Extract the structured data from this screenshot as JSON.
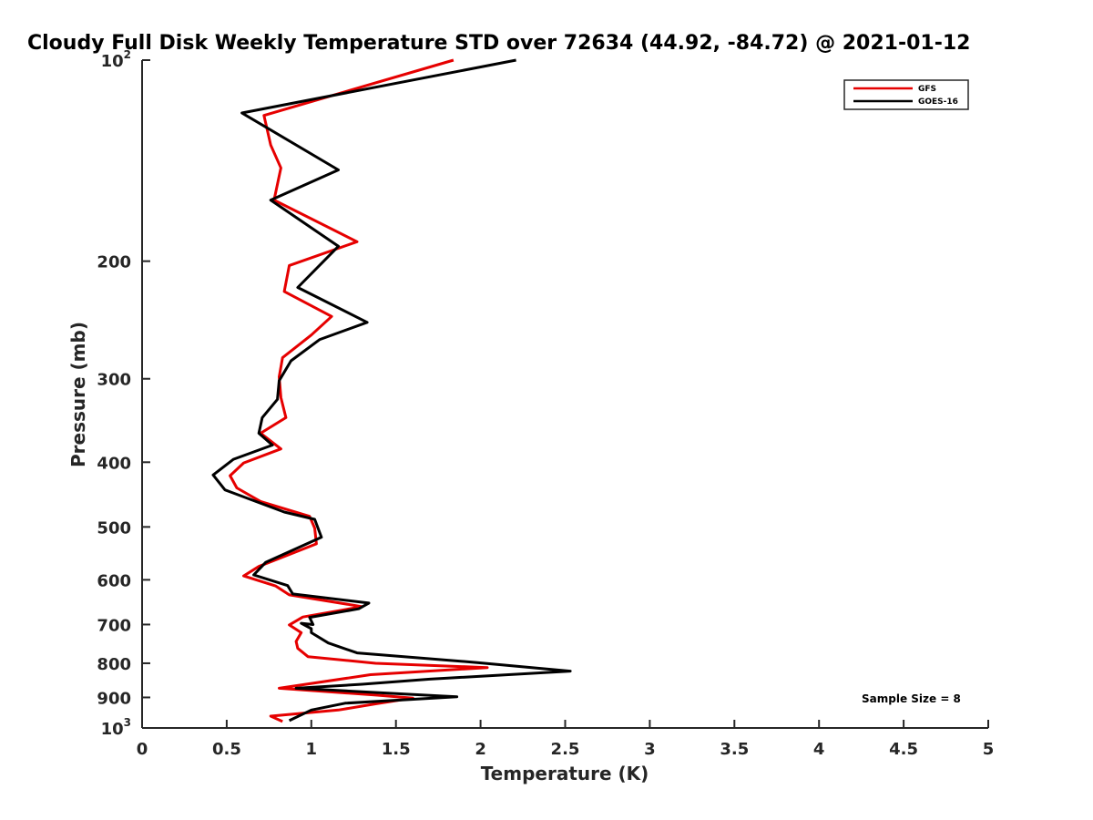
{
  "chart_data": {
    "type": "line",
    "title": "Cloudy Full Disk Weekly Temperature STD over 72634 (44.92, -84.72) @ 2021-01-12",
    "xlabel": "Temperature (K)",
    "ylabel": "Pressure (mb)",
    "xlim": [
      0,
      5
    ],
    "ylim": [
      100,
      1000
    ],
    "y_scale": "log",
    "y_reversed": true,
    "grid": false,
    "legend_position": "top-right",
    "x_ticks": [
      0,
      0.5,
      1,
      1.5,
      2,
      2.5,
      3,
      3.5,
      4,
      4.5,
      5
    ],
    "x_tick_labels": [
      "0",
      "0.5",
      "1",
      "1.5",
      "2",
      "2.5",
      "3",
      "3.5",
      "4",
      "4.5",
      "5"
    ],
    "y_ticks": [
      100,
      200,
      300,
      400,
      500,
      600,
      700,
      800,
      900,
      1000
    ],
    "y_tick_labels": [
      {
        "base": "10",
        "exp": "2"
      },
      {
        "base": "200",
        "exp": ""
      },
      {
        "base": "300",
        "exp": ""
      },
      {
        "base": "400",
        "exp": ""
      },
      {
        "base": "500",
        "exp": ""
      },
      {
        "base": "600",
        "exp": ""
      },
      {
        "base": "700",
        "exp": ""
      },
      {
        "base": "800",
        "exp": ""
      },
      {
        "base": "900",
        "exp": ""
      },
      {
        "base": "10",
        "exp": "3"
      }
    ],
    "series": [
      {
        "name": "GFS",
        "color": "#e60000",
        "points": [
          [
            1.84,
            100
          ],
          [
            0.72,
            121
          ],
          [
            0.76,
            134
          ],
          [
            0.82,
            145
          ],
          [
            0.78,
            162
          ],
          [
            1.27,
            187
          ],
          [
            0.87,
            203
          ],
          [
            0.84,
            222
          ],
          [
            1.12,
            242
          ],
          [
            1.0,
            258
          ],
          [
            0.83,
            279
          ],
          [
            0.81,
            298
          ],
          [
            0.82,
            320
          ],
          [
            0.85,
            343
          ],
          [
            0.7,
            362
          ],
          [
            0.82,
            382
          ],
          [
            0.6,
            401
          ],
          [
            0.52,
            419
          ],
          [
            0.56,
            437
          ],
          [
            0.7,
            458
          ],
          [
            0.99,
            482
          ],
          [
            1.02,
            502
          ],
          [
            1.03,
            530
          ],
          [
            0.69,
            573
          ],
          [
            0.6,
            592
          ],
          [
            0.79,
            613
          ],
          [
            0.87,
            632
          ],
          [
            1.3,
            658
          ],
          [
            0.95,
            682
          ],
          [
            0.87,
            701
          ],
          [
            0.94,
            720
          ],
          [
            0.91,
            742
          ],
          [
            0.92,
            760
          ],
          [
            0.98,
            782
          ],
          [
            1.38,
            800
          ],
          [
            2.04,
            812
          ],
          [
            1.35,
            832
          ],
          [
            0.81,
            872
          ],
          [
            1.39,
            893
          ],
          [
            1.6,
            902
          ],
          [
            1.38,
            920
          ],
          [
            1.16,
            940
          ],
          [
            0.76,
            960
          ],
          [
            0.83,
            978
          ]
        ]
      },
      {
        "name": "GOES-16",
        "color": "#000000",
        "points": [
          [
            2.21,
            100
          ],
          [
            0.59,
            120
          ],
          [
            1.16,
            146
          ],
          [
            0.76,
            162
          ],
          [
            1.16,
            190
          ],
          [
            0.92,
            219
          ],
          [
            1.33,
            247
          ],
          [
            1.05,
            262
          ],
          [
            0.88,
            282
          ],
          [
            0.81,
            302
          ],
          [
            0.8,
            322
          ],
          [
            0.71,
            343
          ],
          [
            0.69,
            362
          ],
          [
            0.77,
            377
          ],
          [
            0.54,
            396
          ],
          [
            0.42,
            418
          ],
          [
            0.49,
            440
          ],
          [
            0.84,
            475
          ],
          [
            1.02,
            487
          ],
          [
            1.06,
            518
          ],
          [
            0.73,
            565
          ],
          [
            0.66,
            590
          ],
          [
            0.86,
            612
          ],
          [
            0.89,
            630
          ],
          [
            1.34,
            650
          ],
          [
            1.28,
            663
          ],
          [
            0.99,
            683
          ],
          [
            1.01,
            700
          ],
          [
            0.94,
            697
          ],
          [
            1.0,
            710
          ],
          [
            1.0,
            720
          ],
          [
            1.1,
            746
          ],
          [
            1.27,
            772
          ],
          [
            1.98,
            798
          ],
          [
            2.53,
            822
          ],
          [
            1.7,
            845
          ],
          [
            1.3,
            860
          ],
          [
            0.91,
            872
          ],
          [
            1.86,
            898
          ],
          [
            1.2,
            918
          ],
          [
            1.0,
            940
          ],
          [
            0.87,
            975
          ]
        ]
      }
    ],
    "annotations": [
      "Sample Size = 8"
    ]
  }
}
